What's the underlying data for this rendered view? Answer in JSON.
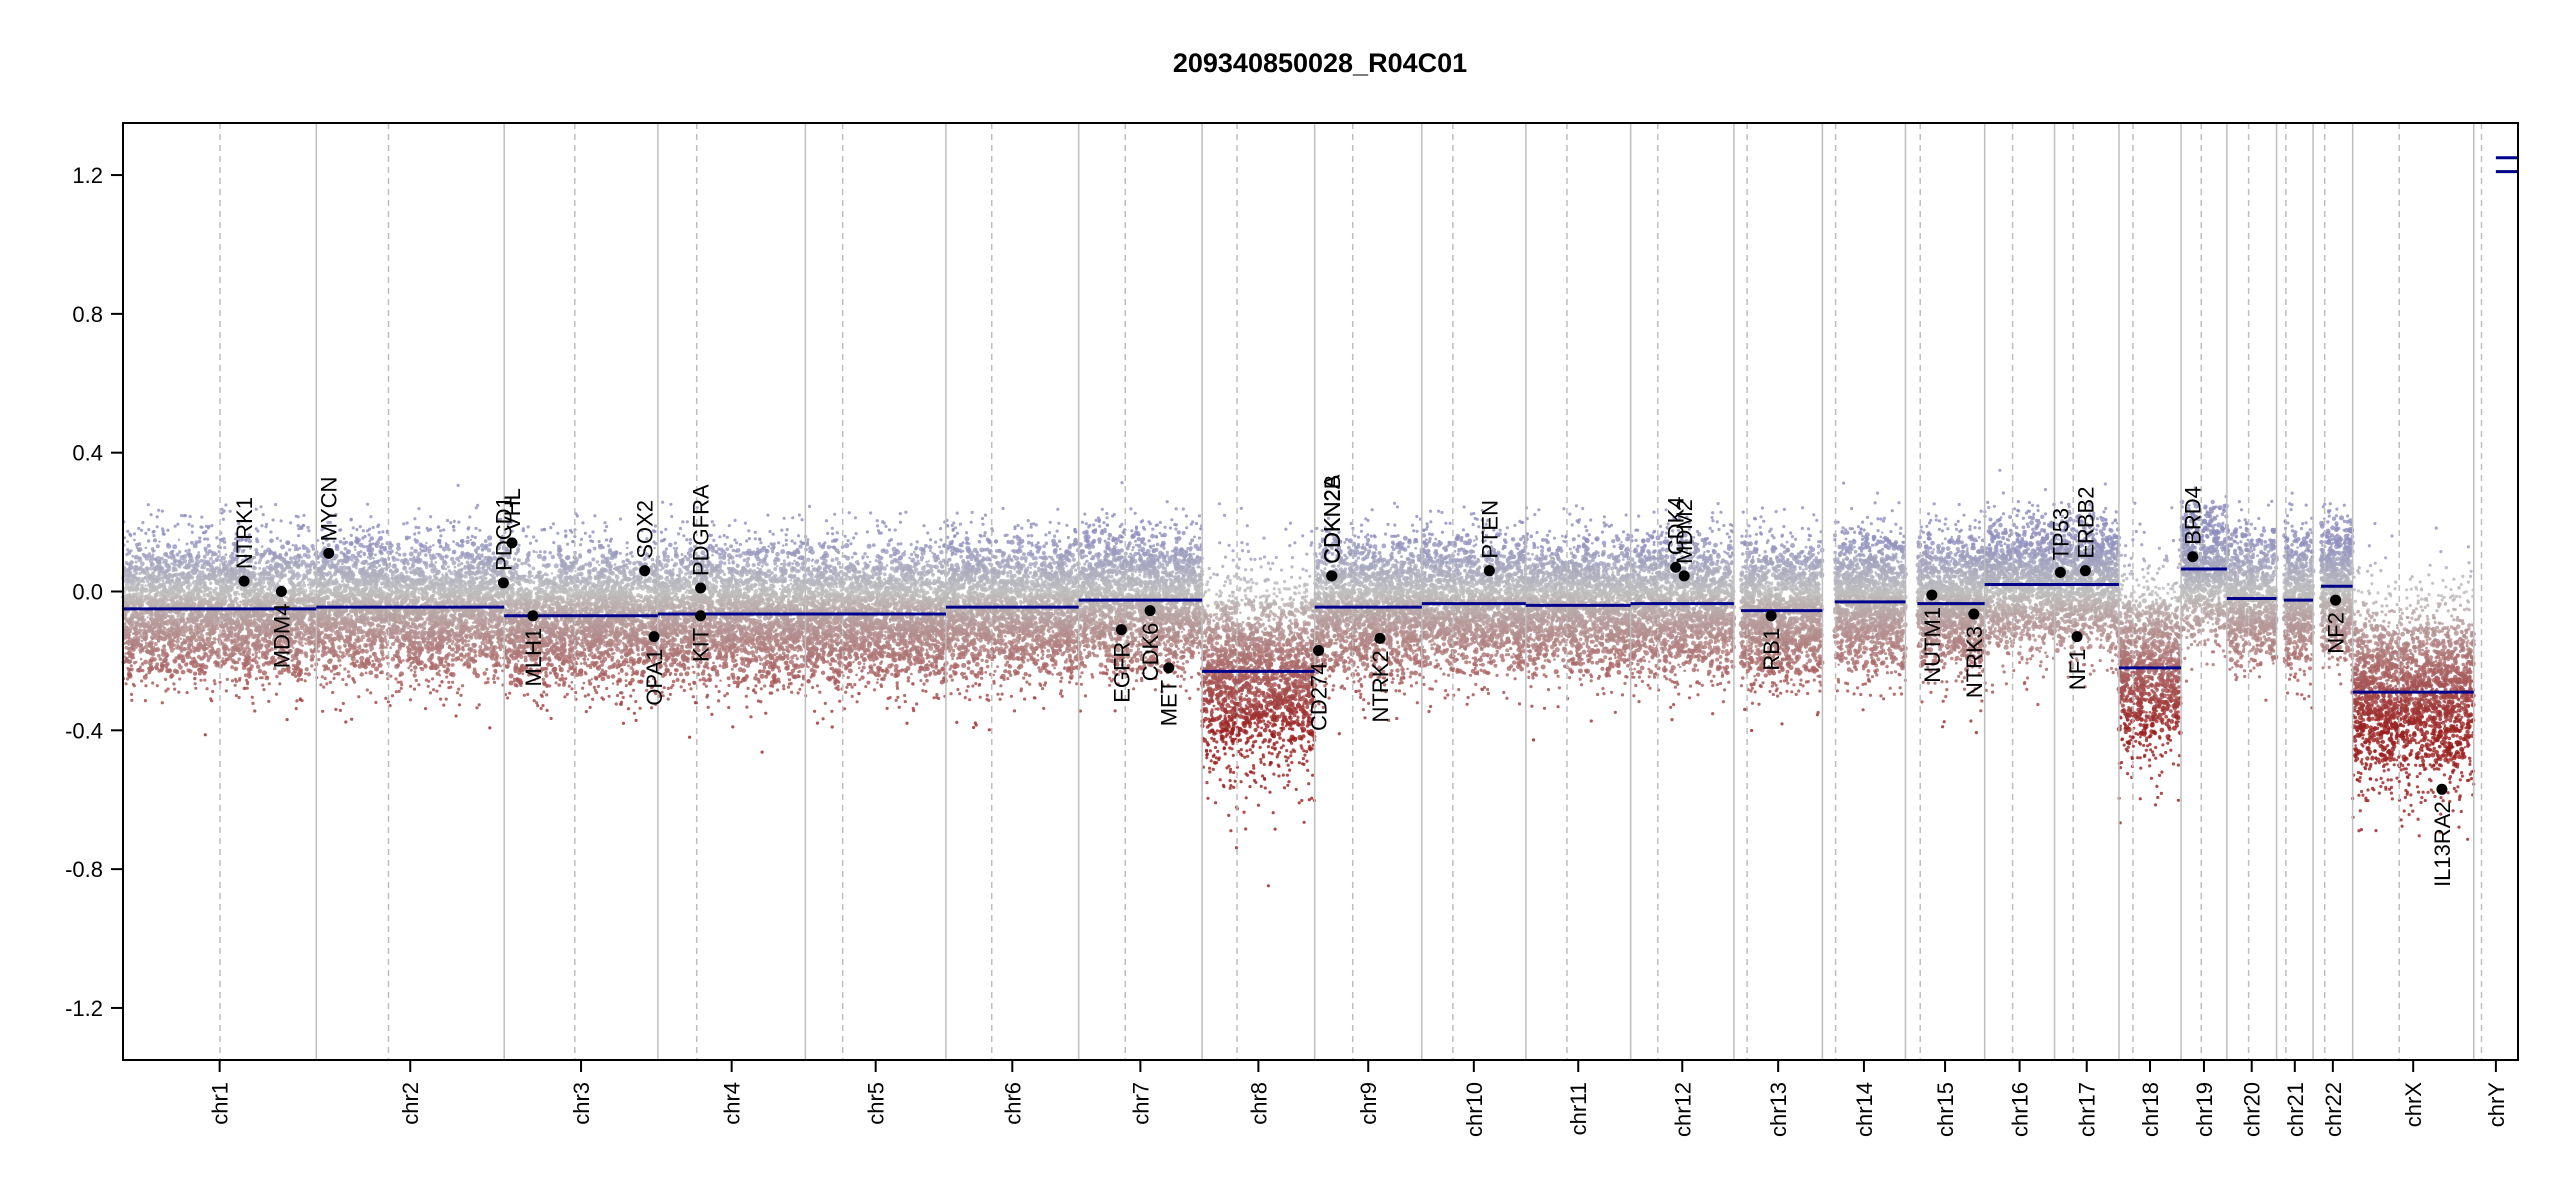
{
  "chart_data": {
    "type": "scatter",
    "title": "209340850028_R04C01",
    "xlabel": "",
    "ylabel": "",
    "ylim": [
      -1.35,
      1.35
    ],
    "yticks": [
      {
        "value": 1.2,
        "label": "1.2"
      },
      {
        "value": 0.8,
        "label": "0.8"
      },
      {
        "value": 0.4,
        "label": "0.4"
      },
      {
        "value": 0.0,
        "label": "0.0"
      },
      {
        "value": -0.4,
        "label": "-0.4"
      },
      {
        "value": -0.8,
        "label": "-0.8"
      },
      {
        "value": -1.2,
        "label": "-1.2"
      }
    ],
    "grid": false,
    "genome_length_mb": 3037,
    "chromosomes": [
      {
        "name": "chr1",
        "length_mb": 249,
        "centromere_mb": 125,
        "segments": [
          {
            "from": 0,
            "to": 1,
            "value": -0.05
          }
        ]
      },
      {
        "name": "chr2",
        "length_mb": 242,
        "centromere_mb": 93,
        "segments": [
          {
            "from": 0,
            "to": 1,
            "value": -0.045
          }
        ]
      },
      {
        "name": "chr3",
        "length_mb": 198,
        "centromere_mb": 91,
        "segments": [
          {
            "from": 0,
            "to": 1,
            "value": -0.07
          }
        ]
      },
      {
        "name": "chr4",
        "length_mb": 190,
        "centromere_mb": 50,
        "segments": [
          {
            "from": 0,
            "to": 1,
            "value": -0.065
          }
        ]
      },
      {
        "name": "chr5",
        "length_mb": 181,
        "centromere_mb": 48,
        "segments": [
          {
            "from": 0,
            "to": 1,
            "value": -0.065
          }
        ]
      },
      {
        "name": "chr6",
        "length_mb": 171,
        "centromere_mb": 59,
        "segments": [
          {
            "from": 0,
            "to": 1,
            "value": -0.045
          }
        ]
      },
      {
        "name": "chr7",
        "length_mb": 159,
        "centromere_mb": 60,
        "segments": [
          {
            "from": 0,
            "to": 1,
            "value": -0.025
          }
        ]
      },
      {
        "name": "chr8",
        "length_mb": 145,
        "centromere_mb": 45,
        "segments": [
          {
            "from": 0,
            "to": 1,
            "value": -0.23
          }
        ]
      },
      {
        "name": "chr9",
        "length_mb": 138,
        "centromere_mb": 49,
        "segments": [
          {
            "from": 0,
            "to": 1,
            "value": -0.045
          }
        ]
      },
      {
        "name": "chr10",
        "length_mb": 134,
        "centromere_mb": 40,
        "segments": [
          {
            "from": 0,
            "to": 1,
            "value": -0.035
          }
        ]
      },
      {
        "name": "chr11",
        "length_mb": 135,
        "centromere_mb": 53,
        "segments": [
          {
            "from": 0,
            "to": 1,
            "value": -0.04
          }
        ]
      },
      {
        "name": "chr12",
        "length_mb": 133,
        "centromere_mb": 35,
        "segments": [
          {
            "from": 0,
            "to": 1,
            "value": -0.035
          }
        ]
      },
      {
        "name": "chr13",
        "length_mb": 114,
        "centromere_mb": 17,
        "segments": [
          {
            "from": 0.08,
            "to": 1,
            "value": -0.055
          }
        ]
      },
      {
        "name": "chr14",
        "length_mb": 107,
        "centromere_mb": 17,
        "segments": [
          {
            "from": 0.15,
            "to": 1,
            "value": -0.03
          }
        ]
      },
      {
        "name": "chr15",
        "length_mb": 102,
        "centromere_mb": 19,
        "segments": [
          {
            "from": 0.15,
            "to": 1,
            "value": -0.035
          }
        ]
      },
      {
        "name": "chr16",
        "length_mb": 90,
        "centromere_mb": 36,
        "segments": [
          {
            "from": 0,
            "to": 1,
            "value": 0.02
          }
        ]
      },
      {
        "name": "chr17",
        "length_mb": 83,
        "centromere_mb": 24,
        "segments": [
          {
            "from": 0,
            "to": 1,
            "value": 0.02
          }
        ]
      },
      {
        "name": "chr18",
        "length_mb": 80,
        "centromere_mb": 18,
        "segments": [
          {
            "from": 0,
            "to": 1,
            "value": -0.22
          }
        ]
      },
      {
        "name": "chr19",
        "length_mb": 59,
        "centromere_mb": 26,
        "segments": [
          {
            "from": 0,
            "to": 1,
            "value": 0.065
          }
        ]
      },
      {
        "name": "chr20",
        "length_mb": 64,
        "centromere_mb": 28,
        "segments": [
          {
            "from": 0,
            "to": 1,
            "value": -0.02
          }
        ]
      },
      {
        "name": "chr21",
        "length_mb": 47,
        "centromere_mb": 12,
        "segments": [
          {
            "from": 0.2,
            "to": 1,
            "value": -0.025
          }
        ]
      },
      {
        "name": "chr22",
        "length_mb": 51,
        "centromere_mb": 15,
        "segments": [
          {
            "from": 0.2,
            "to": 1,
            "value": 0.015
          }
        ]
      },
      {
        "name": "chrX",
        "length_mb": 156,
        "centromere_mb": 60,
        "segments": [
          {
            "from": 0,
            "to": 1,
            "value": -0.29
          }
        ]
      },
      {
        "name": "chrY",
        "length_mb": 57,
        "centromere_mb": 10,
        "segments": [
          {
            "from": 0.5,
            "to": 1,
            "value": 1.21
          },
          {
            "from": 0.5,
            "to": 1,
            "value": 1.25
          }
        ]
      }
    ],
    "genes": [
      {
        "name": "NTRK1",
        "chrom": "chr1",
        "pos_mb": 156,
        "value": 0.03,
        "label_side": "above"
      },
      {
        "name": "MDM4",
        "chrom": "chr1",
        "pos_mb": 204,
        "value": 0.0,
        "label_side": "below"
      },
      {
        "name": "MYCN",
        "chrom": "chr2",
        "pos_mb": 16,
        "value": 0.11,
        "label_side": "above"
      },
      {
        "name": "PDCD1",
        "chrom": "chr2",
        "pos_mb": 241,
        "value": 0.025,
        "label_side": "above"
      },
      {
        "name": "VHL",
        "chrom": "chr3",
        "pos_mb": 10,
        "value": 0.14,
        "label_side": "above"
      },
      {
        "name": "MLH1",
        "chrom": "chr3",
        "pos_mb": 37,
        "value": -0.07,
        "label_side": "below"
      },
      {
        "name": "SOX2",
        "chrom": "chr3",
        "pos_mb": 181,
        "value": 0.06,
        "label_side": "above"
      },
      {
        "name": "OPA1",
        "chrom": "chr3",
        "pos_mb": 193,
        "value": -0.13,
        "label_side": "below"
      },
      {
        "name": "PDGFRA",
        "chrom": "chr4",
        "pos_mb": 55,
        "value": 0.01,
        "label_side": "above"
      },
      {
        "name": "KIT",
        "chrom": "chr4",
        "pos_mb": 55,
        "value": -0.07,
        "label_side": "below"
      },
      {
        "name": "EGFR",
        "chrom": "chr7",
        "pos_mb": 55,
        "value": -0.11,
        "label_side": "below"
      },
      {
        "name": "CDK6",
        "chrom": "chr7",
        "pos_mb": 92,
        "value": -0.055,
        "label_side": "below"
      },
      {
        "name": "MET",
        "chrom": "chr7",
        "pos_mb": 116,
        "value": -0.22,
        "label_side": "below"
      },
      {
        "name": "CD274",
        "chrom": "chr9",
        "pos_mb": 5,
        "value": -0.17,
        "label_side": "below"
      },
      {
        "name": "CDKN2A",
        "chrom": "chr9",
        "pos_mb": 21.9,
        "value": 0.045,
        "label_side": "above"
      },
      {
        "name": "CDKN2B",
        "chrom": "chr9",
        "pos_mb": 22.1,
        "value": 0.045,
        "label_side": "above"
      },
      {
        "name": "NTRK2",
        "chrom": "chr9",
        "pos_mb": 84,
        "value": -0.135,
        "label_side": "below"
      },
      {
        "name": "PTEN",
        "chrom": "chr10",
        "pos_mb": 87,
        "value": 0.06,
        "label_side": "above"
      },
      {
        "name": "CDK4",
        "chrom": "chr12",
        "pos_mb": 58,
        "value": 0.07,
        "label_side": "above"
      },
      {
        "name": "MDM2",
        "chrom": "chr12",
        "pos_mb": 69,
        "value": 0.045,
        "label_side": "above"
      },
      {
        "name": "RB1",
        "chrom": "chr13",
        "pos_mb": 48,
        "value": -0.07,
        "label_side": "below"
      },
      {
        "name": "NUTM1",
        "chrom": "chr15",
        "pos_mb": 34,
        "value": -0.01,
        "label_side": "below"
      },
      {
        "name": "NTRK3",
        "chrom": "chr15",
        "pos_mb": 88,
        "value": -0.065,
        "label_side": "below"
      },
      {
        "name": "TP53",
        "chrom": "chr17",
        "pos_mb": 7.5,
        "value": 0.055,
        "label_side": "above"
      },
      {
        "name": "NF1",
        "chrom": "chr17",
        "pos_mb": 29,
        "value": -0.13,
        "label_side": "below"
      },
      {
        "name": "ERBB2",
        "chrom": "chr17",
        "pos_mb": 39.7,
        "value": 0.06,
        "label_side": "above"
      },
      {
        "name": "BRD4",
        "chrom": "chr19",
        "pos_mb": 15,
        "value": 0.1,
        "label_side": "above"
      },
      {
        "name": "NF2",
        "chrom": "chr22",
        "pos_mb": 29,
        "value": -0.025,
        "label_side": "below"
      },
      {
        "name": "IL13RA2",
        "chrom": "chrX",
        "pos_mb": 115,
        "value": -0.57,
        "label_side": "below"
      }
    ],
    "colors": {
      "segment": "#00008B",
      "gain_point": "#8E8EBE",
      "neutral_point": "#BEBEBE",
      "loss_point": "#9A1F1F",
      "gene_point": "#000000",
      "chrom_boundary": "#BEBEBE",
      "centromere": "#BEBEBE",
      "axis": "#000000"
    }
  }
}
